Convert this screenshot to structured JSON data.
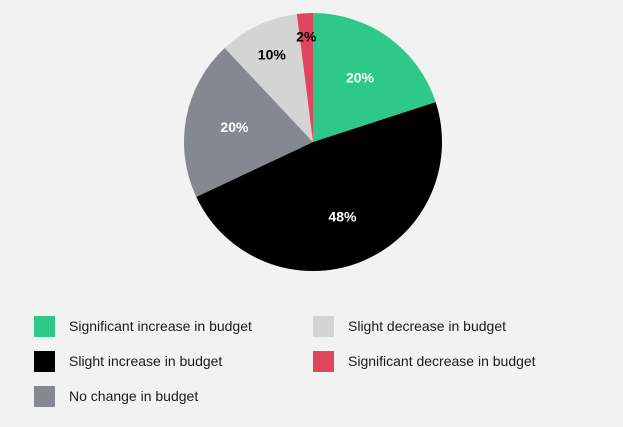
{
  "chart_data": {
    "type": "pie",
    "title": "",
    "slices": [
      {
        "name": "Significant increase in budget",
        "value": 20,
        "label": "20%",
        "color": "#2ec98a",
        "label_color": "#ffffff"
      },
      {
        "name": "Slight increase in budget",
        "value": 48,
        "label": "48%",
        "color": "#000000",
        "label_color": "#ffffff"
      },
      {
        "name": "No change in budget",
        "value": 20,
        "label": "20%",
        "color": "#858890",
        "label_color": "#ffffff"
      },
      {
        "name": "Slight decrease in budget",
        "value": 10,
        "label": "10%",
        "color": "#d4d4d4",
        "label_color": "#000000"
      },
      {
        "name": "Significant decrease in budget",
        "value": 2,
        "label": "2%",
        "color": "#e0465e",
        "label_color": "#000000"
      }
    ],
    "legend": {
      "position": "bottom",
      "items": [
        {
          "label": "Significant increase in budget",
          "color": "#2ec98a"
        },
        {
          "label": "Slight decrease in budget",
          "color": "#d4d4d4"
        },
        {
          "label": "Slight increase in budget",
          "color": "#000000"
        },
        {
          "label": "Significant decrease in budget",
          "color": "#e0465e"
        },
        {
          "label": "No change in budget",
          "color": "#858890"
        }
      ]
    }
  }
}
